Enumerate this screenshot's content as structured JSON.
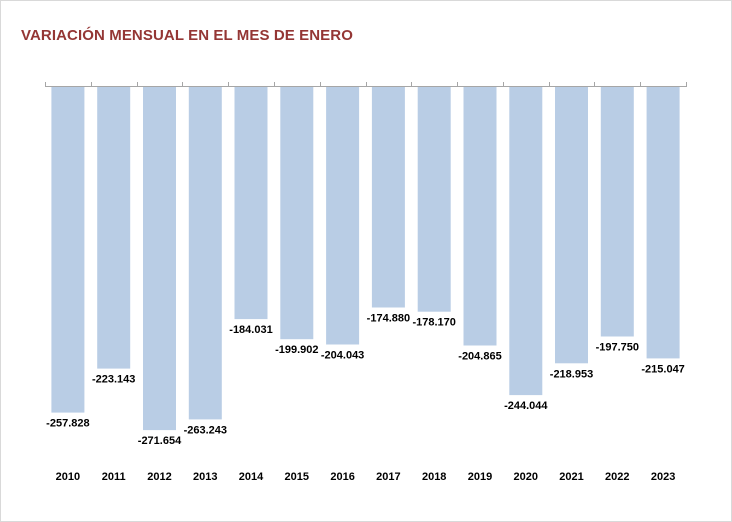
{
  "title": "VARIACIÓN MENSUAL EN EL MES DE ENERO",
  "chart_data": {
    "type": "bar",
    "title": "VARIACIÓN MENSUAL EN EL MES DE ENERO",
    "xlabel": "",
    "ylabel": "",
    "categories": [
      "2010",
      "2011",
      "2012",
      "2013",
      "2014",
      "2015",
      "2016",
      "2017",
      "2018",
      "2019",
      "2020",
      "2021",
      "2022",
      "2023"
    ],
    "values": [
      -257828,
      -223143,
      -271654,
      -263243,
      -184031,
      -199902,
      -204043,
      -174880,
      -178170,
      -204865,
      -244044,
      -218953,
      -197750,
      -215047
    ],
    "value_labels": [
      "-257.828",
      "-223.143",
      "-271.654",
      "-263.243",
      "-184.031",
      "-199.902",
      "-204.043",
      "-174.880",
      "-178.170",
      "-204.865",
      "-244.044",
      "-218.953",
      "-197.750",
      "-215.047"
    ],
    "ylim": [
      -300000,
      0
    ],
    "grid": false,
    "legend": "none",
    "colors": {
      "bar": "#b9cde5",
      "title": "#943634",
      "axis": "#a6a6a6"
    }
  }
}
